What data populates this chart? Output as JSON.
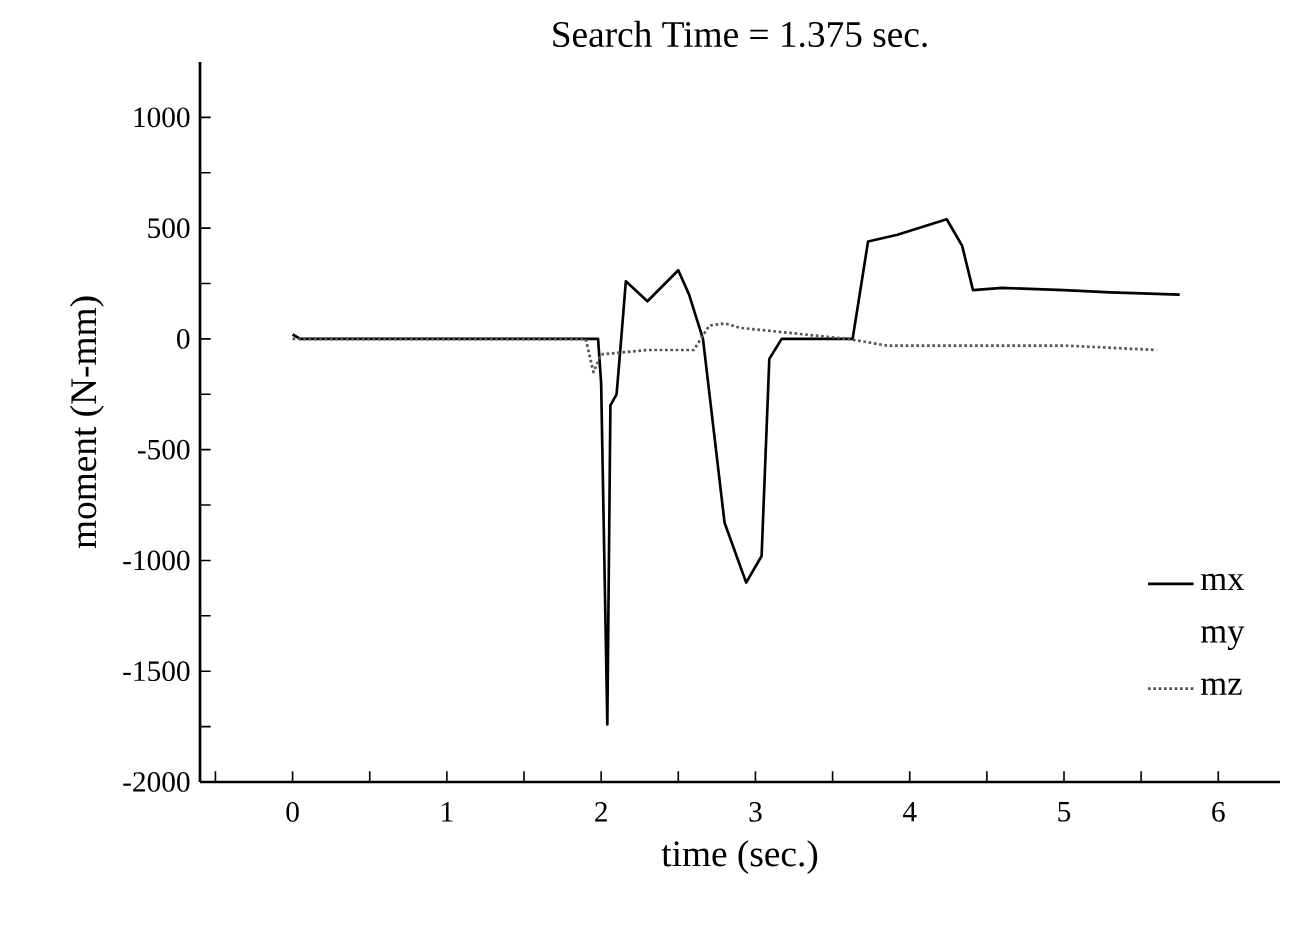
{
  "chart_data": {
    "type": "line",
    "title": "Search Time = 1.375 sec.",
    "xlabel": "time (sec.)",
    "ylabel": "moment (N-mm)",
    "xlim": [
      -0.6,
      6.4
    ],
    "ylim": [
      -2000,
      1250
    ],
    "xticks": [
      {
        "value": -0.5,
        "label": null
      },
      0,
      {
        "value": 0.5,
        "label": null
      },
      1,
      {
        "value": 1.5,
        "label": null
      },
      2,
      {
        "value": 2.5,
        "label": null
      },
      3,
      {
        "value": 3.5,
        "label": null
      },
      4,
      {
        "value": 4.5,
        "label": null
      },
      5,
      {
        "value": 5.5,
        "label": null
      },
      6
    ],
    "yticks": [
      -2000,
      {
        "value": -1750,
        "label": null
      },
      -1500,
      {
        "value": -1250,
        "label": null
      },
      -1000,
      {
        "value": -750,
        "label": null
      },
      -500,
      {
        "value": -250,
        "label": null
      },
      0,
      {
        "value": 250,
        "label": null
      },
      500,
      {
        "value": 750,
        "label": null
      },
      1000
    ],
    "legend": "bottom right",
    "marker": "none",
    "series": [
      {
        "name": "mx",
        "color": "#000000",
        "line_style": "solid",
        "x": [
          0,
          0.05,
          0.5,
          1.0,
          1.5,
          1.98,
          2.0,
          2.04,
          2.06,
          2.1,
          2.13,
          2.16,
          2.3,
          2.5,
          2.57,
          2.66,
          2.8,
          2.94,
          3.04,
          3.09,
          3.17,
          3.4,
          3.63,
          3.73,
          3.92,
          4.24,
          4.34,
          4.41,
          4.6,
          5.0,
          5.3,
          5.75
        ],
        "values": [
          20,
          0,
          0,
          0,
          0,
          0,
          -200,
          -1740,
          -300,
          -250,
          0,
          260,
          170,
          310,
          200,
          0,
          -830,
          -1100,
          -980,
          -90,
          0,
          0,
          0,
          440,
          470,
          540,
          420,
          220,
          230,
          220,
          210,
          200
        ]
      },
      {
        "name": "my"
      },
      {
        "name": "mz",
        "color": "#555555",
        "line_style": "dotted",
        "x": [
          0,
          1.0,
          1.9,
          1.95,
          2.0,
          2.3,
          2.6,
          2.7,
          2.8,
          2.9,
          3.6,
          3.85,
          4.5,
          5.0,
          5.6
        ],
        "values": [
          0,
          0,
          0,
          -150,
          -70,
          -50,
          -50,
          60,
          70,
          50,
          0,
          -30,
          -30,
          -30,
          -50
        ]
      }
    ]
  }
}
